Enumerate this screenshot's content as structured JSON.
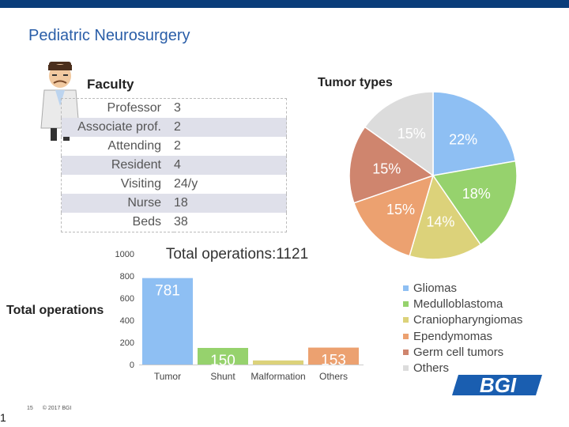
{
  "slide": {
    "title": "Pediatric Neurosurgery",
    "top_bar_color": "#0a3d7a",
    "footer_page": "15",
    "footer_copyright": "© 2017 BGI",
    "slide_number": "1",
    "logo_text": "BGI"
  },
  "faculty": {
    "heading": "Faculty",
    "rows": [
      {
        "label": "Professor",
        "value": "3"
      },
      {
        "label": "Associate prof.",
        "value": "2"
      },
      {
        "label": "Attending",
        "value": "2"
      },
      {
        "label": "Resident",
        "value": "4"
      },
      {
        "label": "Visiting",
        "value": "24/y"
      },
      {
        "label": "Nurse",
        "value": "18"
      },
      {
        "label": "Beds",
        "value": "38"
      }
    ]
  },
  "tumor_heading": "Tumor types",
  "operations_heading": "Total operations",
  "chart_data": [
    {
      "type": "pie",
      "labels": [
        "Gliomas",
        "Medulloblastoma",
        "Craniopharyngiomas",
        "Ependymomas",
        "Germ cell tumors",
        "Others"
      ],
      "values": [
        22,
        18,
        14,
        15,
        15,
        15
      ],
      "value_labels": [
        "22%",
        "18%",
        "14%",
        "15%",
        "15%",
        "15%"
      ],
      "colors": [
        "#8ebff3",
        "#96d26d",
        "#dcd27a",
        "#eca170",
        "#cf856e",
        "#dcdcdc"
      ],
      "legend": "right-bottom"
    },
    {
      "type": "bar",
      "title": "Total operations:1121",
      "categories": [
        "Tumor",
        "Shunt",
        "Malformation",
        "Others"
      ],
      "values": [
        781,
        150,
        37,
        153
      ],
      "colors": [
        "#8ebff3",
        "#96d26d",
        "#dcd27a",
        "#eca170"
      ],
      "yticks": [
        "0",
        "200",
        "400",
        "600",
        "800",
        "1000"
      ],
      "ylim": [
        0,
        1000
      ]
    }
  ]
}
